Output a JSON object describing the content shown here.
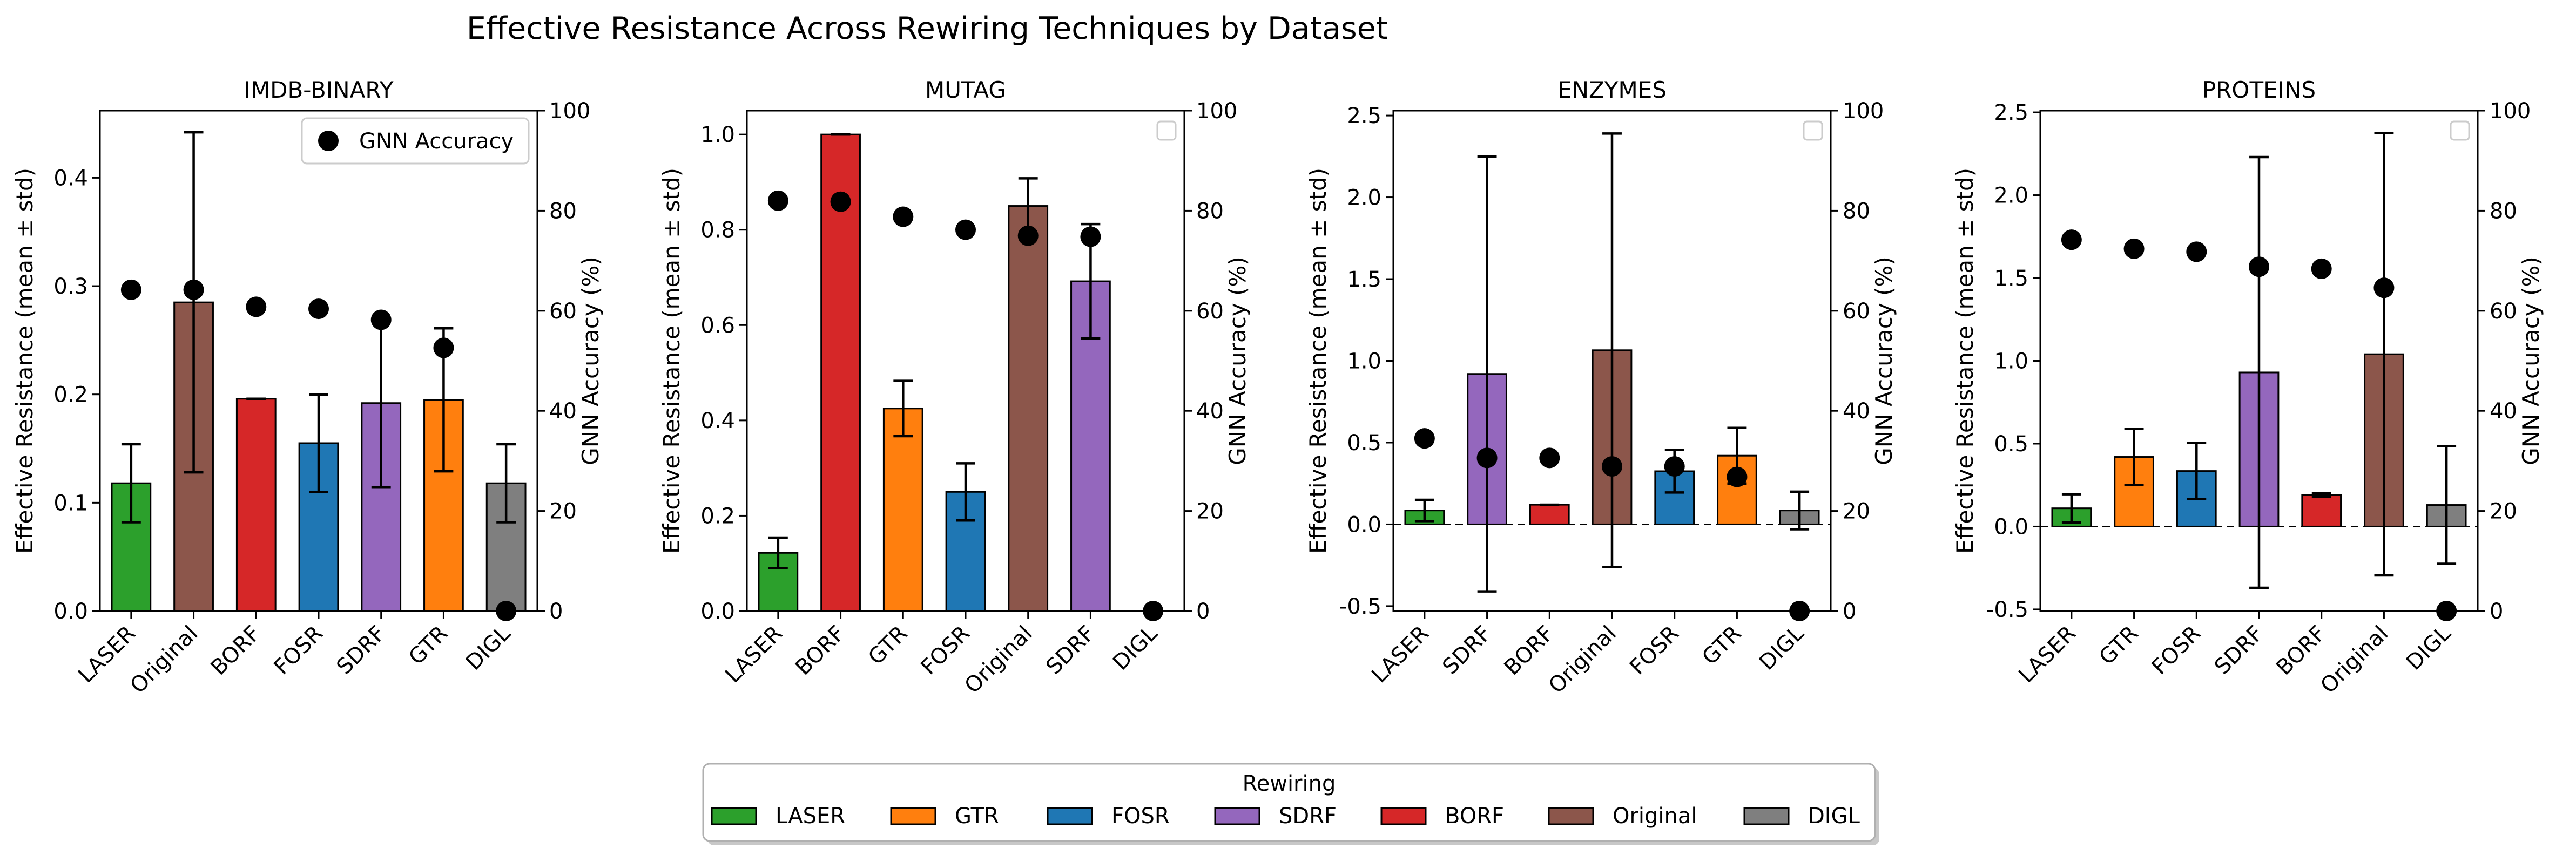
{
  "figure": {
    "title": "Effective Resistance Across Rewiring Techniques by Dataset"
  },
  "axes": {
    "left_label": "Effective Resistance (mean ± std)",
    "right_label": "GNN Accuracy (%)"
  },
  "legend": {
    "title": "Rewiring",
    "placement": "bottom-center",
    "entries": [
      {
        "label": "LASER",
        "color": "#2ca02c"
      },
      {
        "label": "GTR",
        "color": "#ff7f0e"
      },
      {
        "label": "FOSR",
        "color": "#1f77b4"
      },
      {
        "label": "SDRF",
        "color": "#9467bd"
      },
      {
        "label": "BORF",
        "color": "#d62728"
      },
      {
        "label": "Original",
        "color": "#8c564b"
      },
      {
        "label": "DIGL",
        "color": "#7f7f7f"
      }
    ],
    "accuracy_label": "GNN Accuracy"
  },
  "colors": {
    "LASER": "#2ca02c",
    "GTR": "#ff7f0e",
    "FOSR": "#1f77b4",
    "SDRF": "#9467bd",
    "BORF": "#d62728",
    "Original": "#8c564b",
    "DIGL": "#7f7f7f"
  },
  "chart_data": [
    {
      "type": "bar",
      "title": "IMDB-BINARY",
      "categories": [
        "LASER",
        "Original",
        "BORF",
        "FOSR",
        "SDRF",
        "GTR",
        "DIGL"
      ],
      "values": [
        0.118,
        0.285,
        0.196,
        0.155,
        0.192,
        0.195,
        0.118
      ],
      "std": [
        0.036,
        0.157,
        0.0,
        0.045,
        0.078,
        0.066,
        0.036
      ],
      "accuracy": [
        64.2,
        64.2,
        60.8,
        60.4,
        58.2,
        52.6,
        0.0
      ],
      "ylim": [
        0,
        0.462
      ],
      "yticks": [
        0.0,
        0.1,
        0.2,
        0.3,
        0.4
      ],
      "y2lim": [
        0,
        100
      ],
      "y2ticks": [
        0,
        20,
        40,
        60,
        80,
        100
      ],
      "zero_line": false,
      "legend": "top-right"
    },
    {
      "type": "bar",
      "title": "MUTAG",
      "categories": [
        "LASER",
        "BORF",
        "GTR",
        "FOSR",
        "Original",
        "SDRF",
        "DIGL"
      ],
      "values": [
        0.122,
        1.0,
        0.425,
        0.25,
        0.85,
        0.692,
        0.0
      ],
      "std": [
        0.032,
        0.0,
        0.058,
        0.06,
        0.058,
        0.12,
        0.0
      ],
      "accuracy": [
        82.0,
        81.8,
        78.8,
        76.2,
        75.0,
        74.8,
        0.0
      ],
      "ylim": [
        0,
        1.05
      ],
      "yticks": [
        0.0,
        0.2,
        0.4,
        0.6,
        0.8,
        1.0
      ],
      "y2lim": [
        0,
        100
      ],
      "y2ticks": [
        0,
        20,
        40,
        60,
        80,
        100
      ],
      "zero_line": false,
      "legend": "top-right"
    },
    {
      "type": "bar",
      "title": "ENZYMES",
      "categories": [
        "LASER",
        "SDRF",
        "BORF",
        "Original",
        "FOSR",
        "GTR",
        "DIGL"
      ],
      "values": [
        0.085,
        0.92,
        0.12,
        1.065,
        0.325,
        0.42,
        0.085
      ],
      "std": [
        0.065,
        1.33,
        0.0,
        1.325,
        0.13,
        0.17,
        0.115
      ],
      "accuracy": [
        34.5,
        30.6,
        30.6,
        28.9,
        28.9,
        26.8,
        0.0
      ],
      "ylim": [
        -0.53,
        2.53
      ],
      "yticks": [
        -0.5,
        0.0,
        0.5,
        1.0,
        1.5,
        2.0,
        2.5
      ],
      "y2lim": [
        0,
        100
      ],
      "y2ticks": [
        0,
        20,
        40,
        60,
        80,
        100
      ],
      "zero_line": true,
      "legend": "top-right"
    },
    {
      "type": "bar",
      "title": "PROTEINS",
      "categories": [
        "LASER",
        "GTR",
        "FOSR",
        "SDRF",
        "BORF",
        "Original",
        "DIGL"
      ],
      "values": [
        0.11,
        0.42,
        0.335,
        0.93,
        0.19,
        1.04,
        0.13
      ],
      "std": [
        0.085,
        0.17,
        0.17,
        1.3,
        0.01,
        1.335,
        0.355
      ],
      "accuracy": [
        74.2,
        72.4,
        71.8,
        68.8,
        68.4,
        64.6,
        0.0
      ],
      "ylim": [
        -0.51,
        2.51
      ],
      "yticks": [
        -0.5,
        0.0,
        0.5,
        1.0,
        1.5,
        2.0,
        2.5
      ],
      "y2lim": [
        0,
        100
      ],
      "y2ticks": [
        0,
        20,
        40,
        60,
        80,
        100
      ],
      "zero_line": true,
      "legend": "top-right"
    }
  ]
}
